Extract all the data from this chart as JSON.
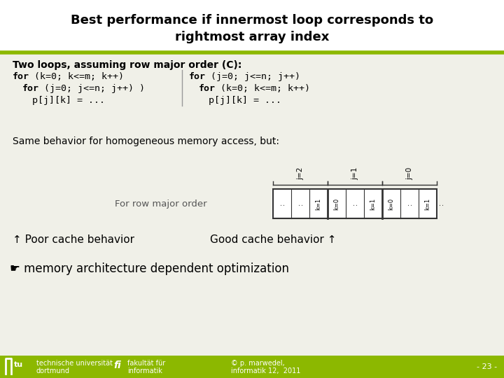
{
  "title_line1": "Best performance if innermost loop corresponds to",
  "title_line2": "rightmost array index",
  "body_bg": "#f0f0e8",
  "olive_color": "#8cb800",
  "text_color": "#000000",
  "section1_bold": "Two loops, assuming row major order (C):",
  "same_behavior": "Same behavior for homogeneous memory access, but:",
  "for_row_label": "For row major order",
  "poor_cache": "↑ Poor cache behavior",
  "good_cache": "Good cache behavior ↑",
  "memory_opt": "☛ memory architecture dependent optimization",
  "footer_left1": "technische universität",
  "footer_left2": "dortmund",
  "footer_mid1": "fakultät für",
  "footer_mid2": "informatik",
  "footer_right1": "© p. marwedel,",
  "footer_right2": "informatik 12,  2011",
  "footer_page": "- 23 -"
}
